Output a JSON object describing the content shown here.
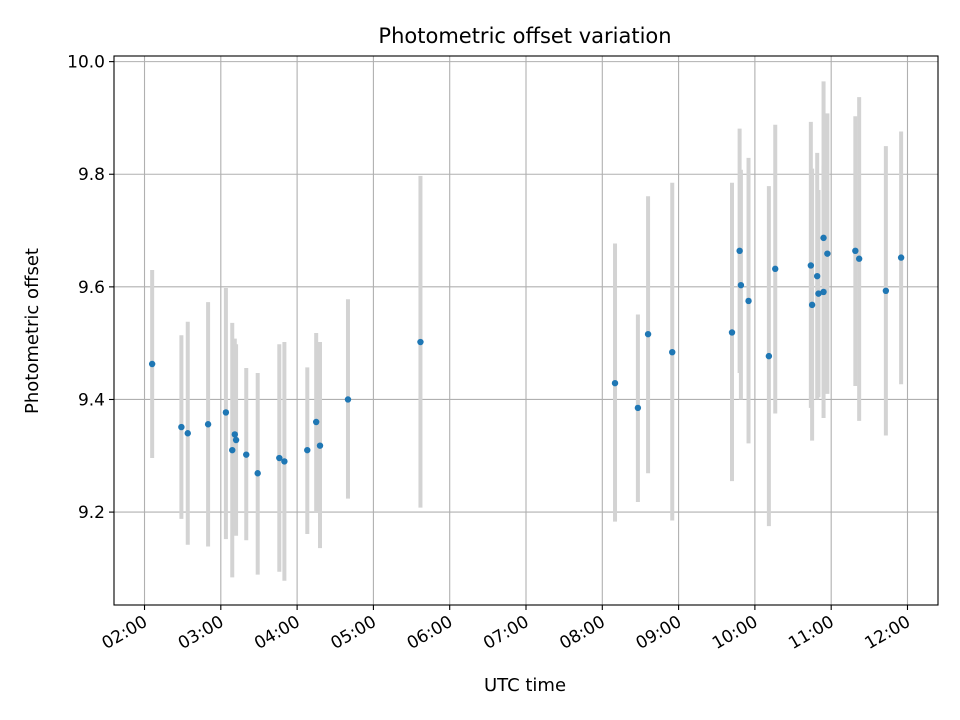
{
  "chart_data": {
    "type": "scatter",
    "title": "Photometric offset variation",
    "xlabel": "UTC time",
    "ylabel": "Photometric offset",
    "xlim": [
      "01:36",
      "12:24"
    ],
    "ylim": [
      9.035,
      10.01
    ],
    "grid": true,
    "x_ticks": [
      "02:00",
      "03:00",
      "04:00",
      "05:00",
      "06:00",
      "07:00",
      "08:00",
      "09:00",
      "10:00",
      "11:00",
      "12:00"
    ],
    "y_ticks": [
      9.2,
      9.4,
      9.6,
      9.8,
      10.0
    ],
    "y_tick_labels": [
      "9.2",
      "9.4",
      "9.6",
      "9.8",
      "10.0"
    ],
    "colors": {
      "point": "#1f77b4",
      "errorbar": "#d3d3d3",
      "grid": "#b0b0b0"
    },
    "series": [
      {
        "points": [
          {
            "x": "02:06",
            "y": 9.463,
            "lo": 9.296,
            "hi": 9.63
          },
          {
            "x": "02:29",
            "y": 9.351,
            "lo": 9.188,
            "hi": 9.514
          },
          {
            "x": "02:34",
            "y": 9.34,
            "lo": 9.142,
            "hi": 9.538
          },
          {
            "x": "02:50",
            "y": 9.356,
            "lo": 9.139,
            "hi": 9.573
          },
          {
            "x": "03:04",
            "y": 9.377,
            "lo": 9.152,
            "hi": 9.598
          },
          {
            "x": "03:09",
            "y": 9.31,
            "lo": 9.084,
            "hi": 9.536
          },
          {
            "x": "03:11",
            "y": 9.338,
            "lo": 9.165,
            "hi": 9.508
          },
          {
            "x": "03:12",
            "y": 9.328,
            "lo": 9.158,
            "hi": 9.498
          },
          {
            "x": "03:20",
            "y": 9.302,
            "lo": 9.15,
            "hi": 9.456
          },
          {
            "x": "03:29",
            "y": 9.269,
            "lo": 9.089,
            "hi": 9.447
          },
          {
            "x": "03:46",
            "y": 9.296,
            "lo": 9.094,
            "hi": 9.498
          },
          {
            "x": "03:50",
            "y": 9.29,
            "lo": 9.078,
            "hi": 9.502
          },
          {
            "x": "04:08",
            "y": 9.31,
            "lo": 9.161,
            "hi": 9.457
          },
          {
            "x": "04:15",
            "y": 9.36,
            "lo": 9.2,
            "hi": 9.518
          },
          {
            "x": "04:18",
            "y": 9.318,
            "lo": 9.136,
            "hi": 9.502
          },
          {
            "x": "04:40",
            "y": 9.4,
            "lo": 9.224,
            "hi": 9.578
          },
          {
            "x": "05:37",
            "y": 9.502,
            "lo": 9.208,
            "hi": 9.797
          },
          {
            "x": "08:10",
            "y": 9.429,
            "lo": 9.183,
            "hi": 9.677
          },
          {
            "x": "08:28",
            "y": 9.385,
            "lo": 9.218,
            "hi": 9.551
          },
          {
            "x": "08:36",
            "y": 9.516,
            "lo": 9.269,
            "hi": 9.761
          },
          {
            "x": "08:55",
            "y": 9.484,
            "lo": 9.185,
            "hi": 9.785
          },
          {
            "x": "09:42",
            "y": 9.519,
            "lo": 9.255,
            "hi": 9.785
          },
          {
            "x": "09:48",
            "y": 9.664,
            "lo": 9.447,
            "hi": 9.881
          },
          {
            "x": "09:49",
            "y": 9.603,
            "lo": 9.4,
            "hi": 9.808
          },
          {
            "x": "09:55",
            "y": 9.575,
            "lo": 9.322,
            "hi": 9.829
          },
          {
            "x": "10:11",
            "y": 9.477,
            "lo": 9.175,
            "hi": 9.779
          },
          {
            "x": "10:16",
            "y": 9.632,
            "lo": 9.375,
            "hi": 9.888
          },
          {
            "x": "10:44",
            "y": 9.638,
            "lo": 9.385,
            "hi": 9.893
          },
          {
            "x": "10:45",
            "y": 9.568,
            "lo": 9.327,
            "hi": 9.81
          },
          {
            "x": "10:49",
            "y": 9.619,
            "lo": 9.4,
            "hi": 9.838
          },
          {
            "x": "10:50",
            "y": 9.588,
            "lo": 9.404,
            "hi": 9.772
          },
          {
            "x": "10:54",
            "y": 9.687,
            "lo": 9.409,
            "hi": 9.965
          },
          {
            "x": "10:54",
            "y": 9.591,
            "lo": 9.367,
            "hi": 9.815
          },
          {
            "x": "10:57",
            "y": 9.659,
            "lo": 9.41,
            "hi": 9.908
          },
          {
            "x": "11:19",
            "y": 9.664,
            "lo": 9.424,
            "hi": 9.903
          },
          {
            "x": "11:22",
            "y": 9.65,
            "lo": 9.362,
            "hi": 9.937
          },
          {
            "x": "11:43",
            "y": 9.593,
            "lo": 9.336,
            "hi": 9.85
          },
          {
            "x": "11:55",
            "y": 9.652,
            "lo": 9.427,
            "hi": 9.876
          }
        ]
      }
    ]
  }
}
